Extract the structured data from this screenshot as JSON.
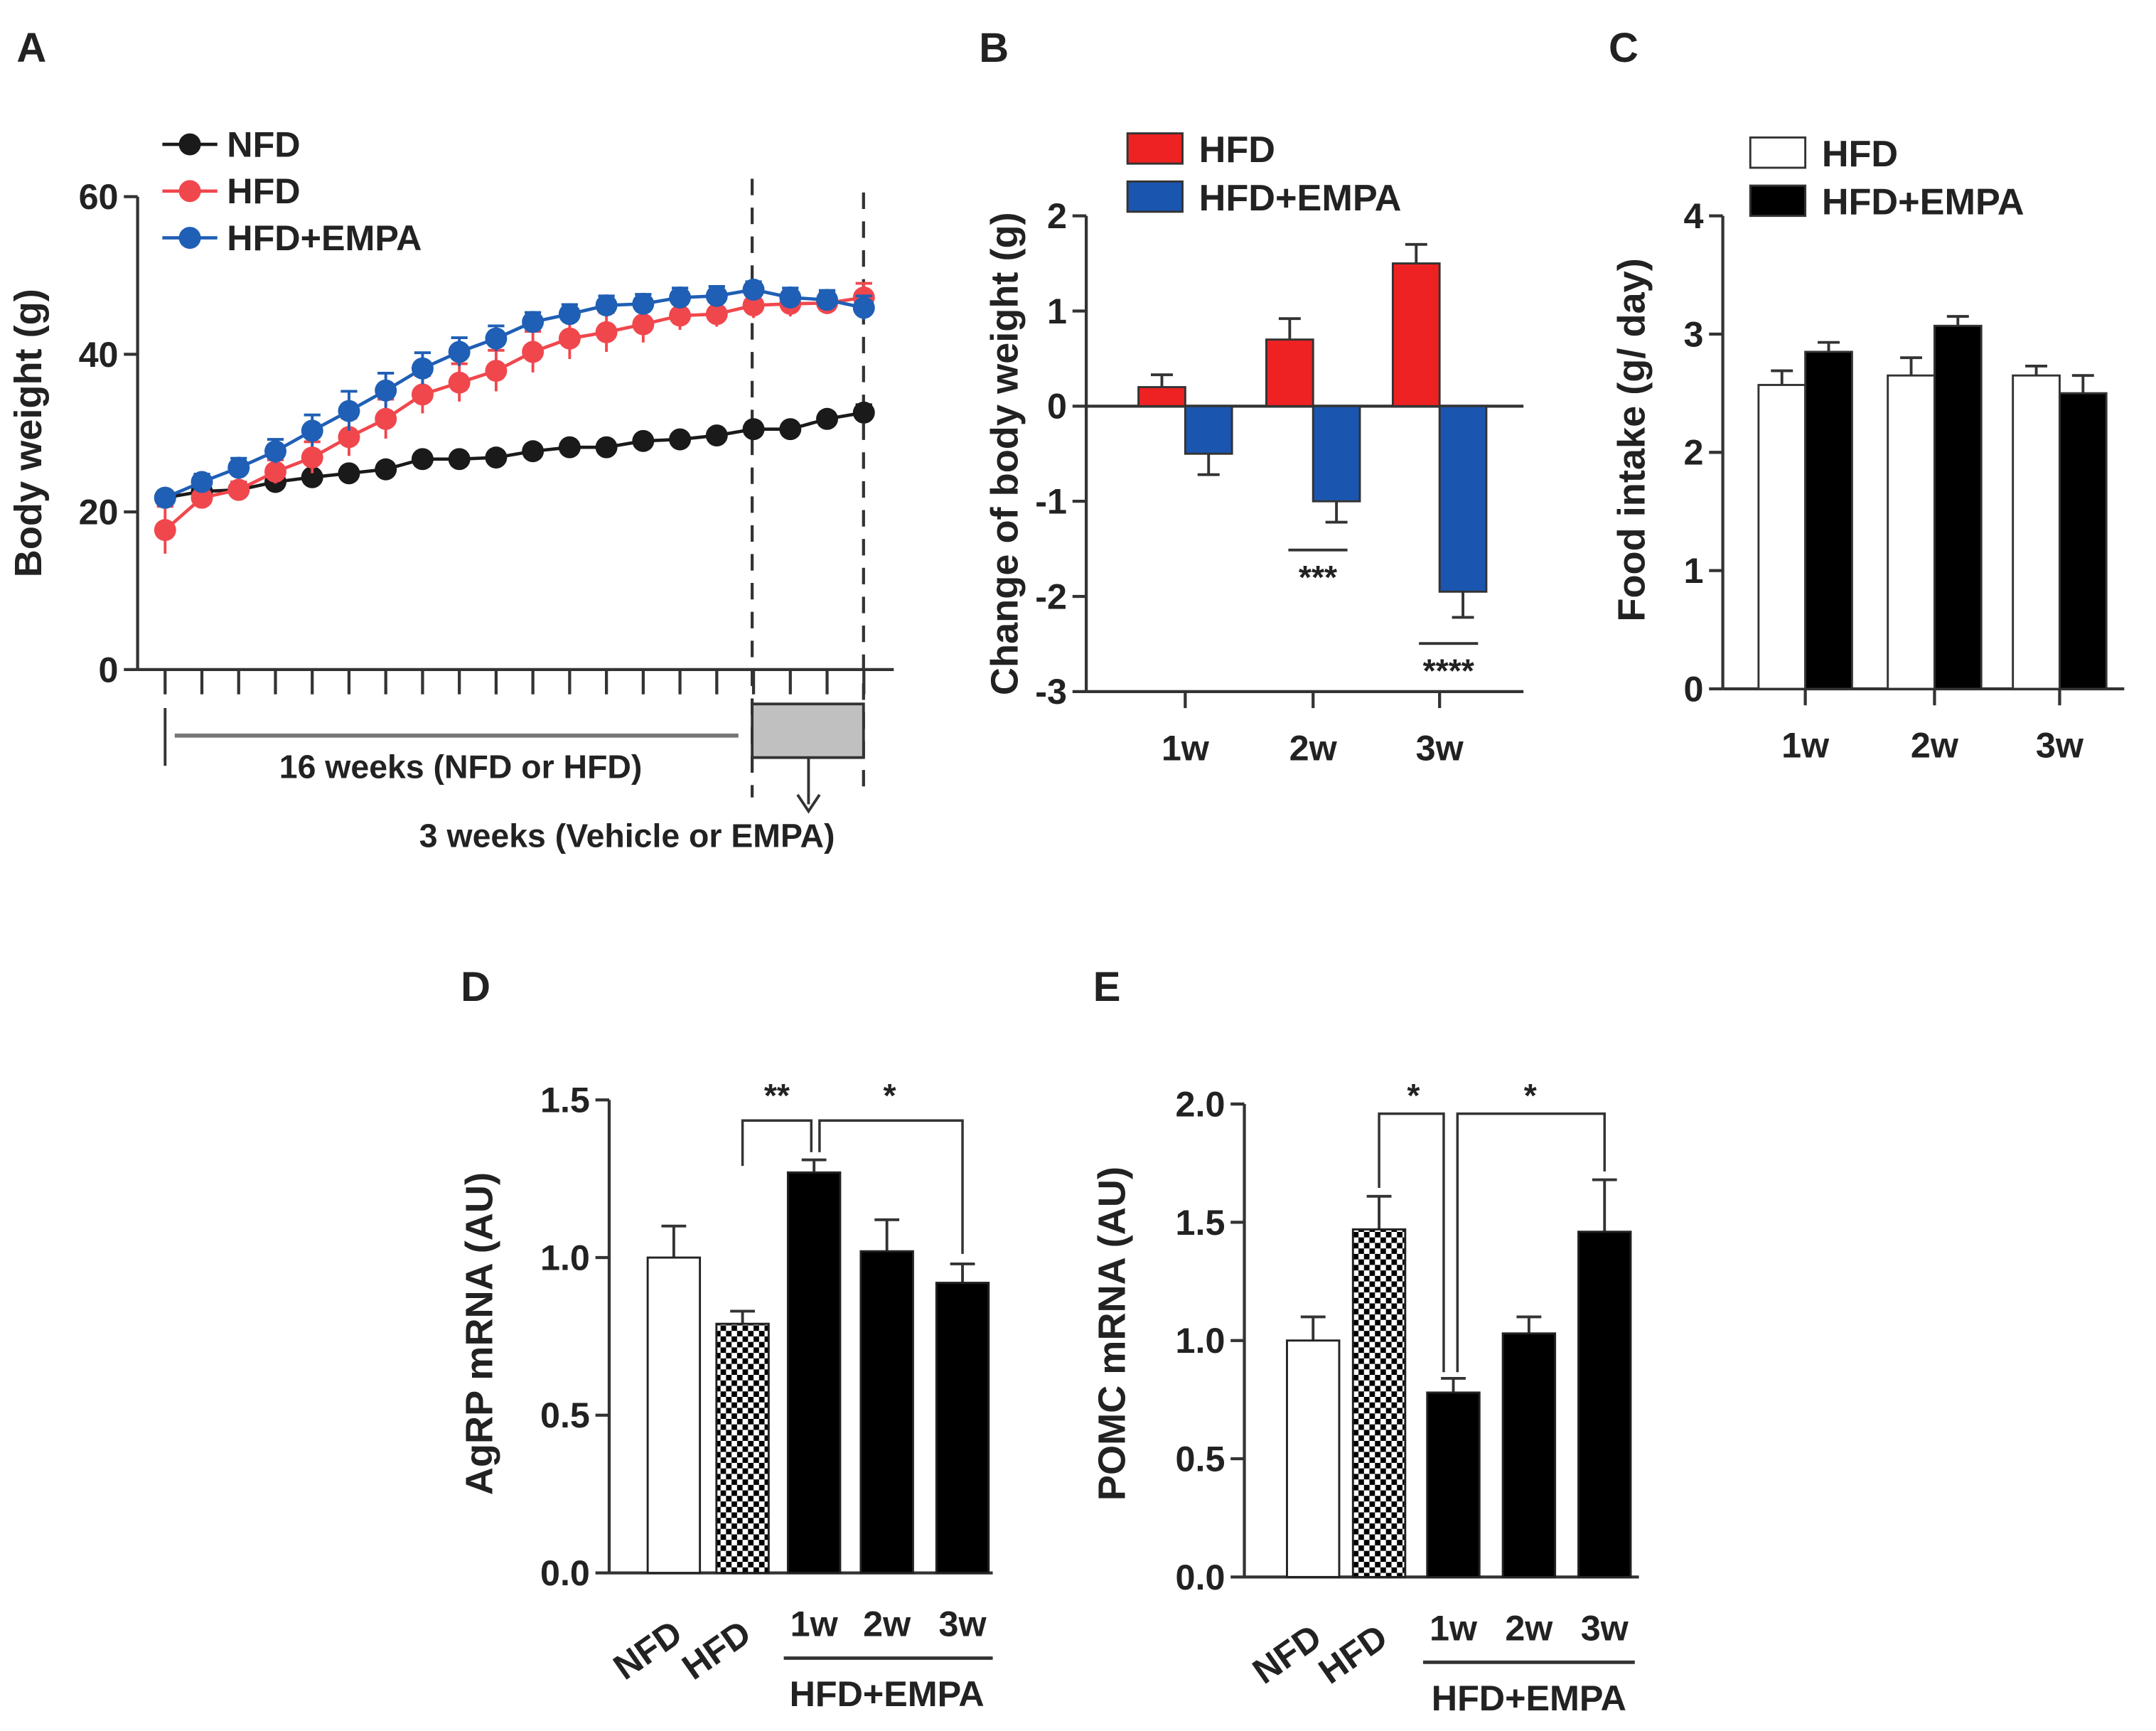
{
  "colors": {
    "nfd": "#1a1a1a",
    "hfd": "#f0474d",
    "empa": "#1f5fb5",
    "bar_red": "#ee2222",
    "bar_blue": "#1a56b0",
    "black": "#000000",
    "gray_box": "#c0c0c0"
  },
  "chart_data": [
    {
      "panel": "A",
      "type": "line",
      "ylabel": "Body weight (g)",
      "ylim": [
        0,
        60
      ],
      "yticks": [
        "0",
        "20",
        "40",
        "60"
      ],
      "x": [
        0,
        1,
        2,
        3,
        4,
        5,
        6,
        7,
        8,
        9,
        10,
        11,
        12,
        13,
        14,
        15,
        16,
        17,
        18,
        19
      ],
      "series": [
        {
          "name": "NFD",
          "color_key": "nfd",
          "values": [
            21.8,
            22.6,
            22.8,
            23.8,
            24.4,
            24.9,
            25.4,
            26.7,
            26.7,
            26.9,
            27.7,
            28.2,
            28.2,
            29.0,
            29.2,
            29.7,
            30.5,
            30.5,
            31.8,
            32.6
          ],
          "err": [
            0.6,
            0.6,
            0.6,
            0.6,
            0.6,
            0.6,
            0.6,
            0.6,
            0.6,
            0.6,
            0.6,
            0.6,
            0.6,
            0.6,
            0.6,
            0.6,
            0.8,
            0.6,
            0.8,
            1.0
          ]
        },
        {
          "name": "HFD",
          "color_key": "hfd",
          "values": [
            17.7,
            21.8,
            22.8,
            25.1,
            26.9,
            29.5,
            31.8,
            34.9,
            36.4,
            37.9,
            40.3,
            42.0,
            42.8,
            43.8,
            44.9,
            45.1,
            46.2,
            46.4,
            46.5,
            47.2
          ],
          "err": [
            3.0,
            0.8,
            1.0,
            1.5,
            2.0,
            2.4,
            2.5,
            2.4,
            2.4,
            2.6,
            2.6,
            2.6,
            2.5,
            2.3,
            1.8,
            1.6,
            1.6,
            1.6,
            1.4,
            1.8
          ]
        },
        {
          "name": "HFD+EMPA",
          "color_key": "empa",
          "values": [
            21.8,
            23.8,
            25.6,
            27.7,
            30.3,
            32.8,
            35.4,
            38.2,
            40.3,
            42.0,
            44.1,
            45.1,
            46.2,
            46.4,
            47.2,
            47.4,
            48.2,
            47.2,
            46.9,
            45.9
          ],
          "err": [
            0.8,
            1.0,
            1.2,
            1.5,
            2.0,
            2.5,
            2.2,
            2.0,
            1.8,
            1.6,
            1.2,
            1.2,
            1.2,
            1.2,
            1.2,
            1.2,
            1.0,
            1.2,
            1.2,
            1.5
          ]
        }
      ],
      "annotations": {
        "phase1": "16 weeks (NFD or HFD)",
        "phase2": "3 weeks (Vehicle or EMPA)"
      }
    },
    {
      "panel": "B",
      "type": "bar",
      "ylabel": "Change of body weight (g)",
      "ylim": [
        -3,
        2
      ],
      "yticks": [
        "-3",
        "-2",
        "-1",
        "0",
        "1",
        "2"
      ],
      "categories": [
        "1w",
        "2w",
        "3w"
      ],
      "series": [
        {
          "name": "HFD",
          "values": [
            0.2,
            0.7,
            1.5
          ],
          "err": [
            0.13,
            0.22,
            0.2
          ]
        },
        {
          "name": "HFD+EMPA",
          "values": [
            -0.5,
            -1.0,
            -1.95
          ],
          "err": [
            0.22,
            0.22,
            0.27
          ]
        }
      ],
      "significance": [
        "",
        "***",
        "****"
      ]
    },
    {
      "panel": "C",
      "type": "bar",
      "ylabel": "Food intake (g/ day)",
      "ylim": [
        0,
        4
      ],
      "yticks": [
        "0",
        "1",
        "2",
        "3",
        "4"
      ],
      "categories": [
        "1w",
        "2w",
        "3w"
      ],
      "series": [
        {
          "name": "HFD",
          "values": [
            2.57,
            2.65,
            2.65
          ],
          "err": [
            0.12,
            0.15,
            0.08
          ]
        },
        {
          "name": "HFD+EMPA",
          "values": [
            2.85,
            3.07,
            2.5
          ],
          "err": [
            0.08,
            0.08,
            0.15
          ]
        }
      ]
    },
    {
      "panel": "D",
      "type": "bar",
      "ylabel": "AgRP mRNA (AU)",
      "ylim": [
        0,
        1.5
      ],
      "yticks": [
        "0.0",
        "0.5",
        "1.0",
        "1.5"
      ],
      "categories": [
        "NFD",
        "HFD",
        "1w",
        "2w",
        "3w"
      ],
      "values": [
        1.0,
        0.79,
        1.27,
        1.02,
        0.92
      ],
      "err": [
        0.1,
        0.04,
        0.04,
        0.1,
        0.06
      ],
      "group_label": "HFD+EMPA",
      "significance": [
        {
          "from": "HFD",
          "to": "1w",
          "label": "**"
        },
        {
          "from": "1w",
          "to": "3w",
          "label": "*"
        }
      ]
    },
    {
      "panel": "E",
      "type": "bar",
      "ylabel": "POMC mRNA  (AU)",
      "ylim": [
        0,
        2.0
      ],
      "yticks": [
        "0.0",
        "0.5",
        "1.0",
        "1.5",
        "2.0"
      ],
      "categories": [
        "NFD",
        "HFD",
        "1w",
        "2w",
        "3w"
      ],
      "values": [
        1.0,
        1.47,
        0.78,
        1.03,
        1.46
      ],
      "err": [
        0.1,
        0.14,
        0.06,
        0.07,
        0.22
      ],
      "group_label": "HFD+EMPA",
      "significance": [
        {
          "from": "HFD",
          "to": "1w",
          "label": "*"
        },
        {
          "from": "1w",
          "to": "3w",
          "label": "*"
        }
      ]
    }
  ]
}
